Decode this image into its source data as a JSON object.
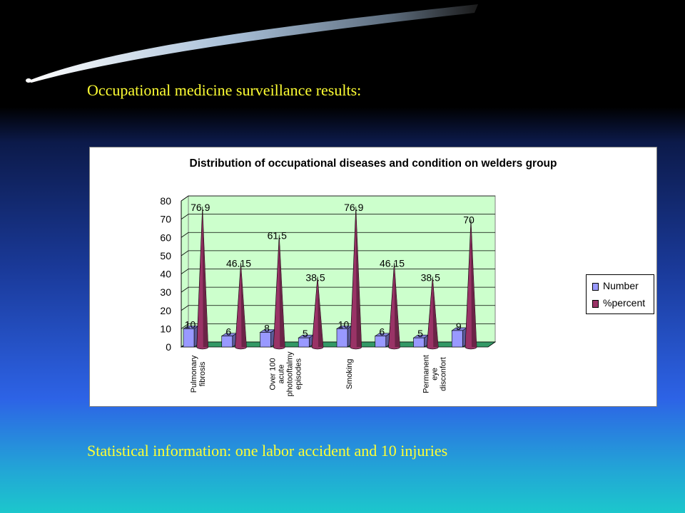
{
  "slide": {
    "title": "Occupational medicine surveillance results:",
    "footer": "Statistical information: one labor accident and 10 injuries"
  },
  "chart_data": {
    "type": "bar",
    "title": "Distribution of occupational diseases and condition on welders group",
    "ylim": [
      0,
      80
    ],
    "yticks": [
      0,
      10,
      20,
      30,
      40,
      50,
      60,
      70,
      80
    ],
    "categories": [
      "Pulmonary fibrosis",
      "",
      "Over 100 acute photooftalmy episodes",
      "",
      "Smoking",
      "",
      "Permanent eye disconfort",
      ""
    ],
    "series": [
      {
        "name": "Number",
        "values": [
          10,
          6,
          8,
          5,
          10,
          6,
          5,
          9
        ],
        "color": "#9999ff"
      },
      {
        "name": "%percent",
        "values": [
          76.9,
          46.15,
          61.5,
          38.5,
          76.9,
          46.15,
          38.5,
          70
        ],
        "color": "#993366"
      }
    ],
    "legend_position": "right",
    "grid": true,
    "plot_colors": {
      "wall": "#ccffcc",
      "floor": "#339966"
    }
  }
}
